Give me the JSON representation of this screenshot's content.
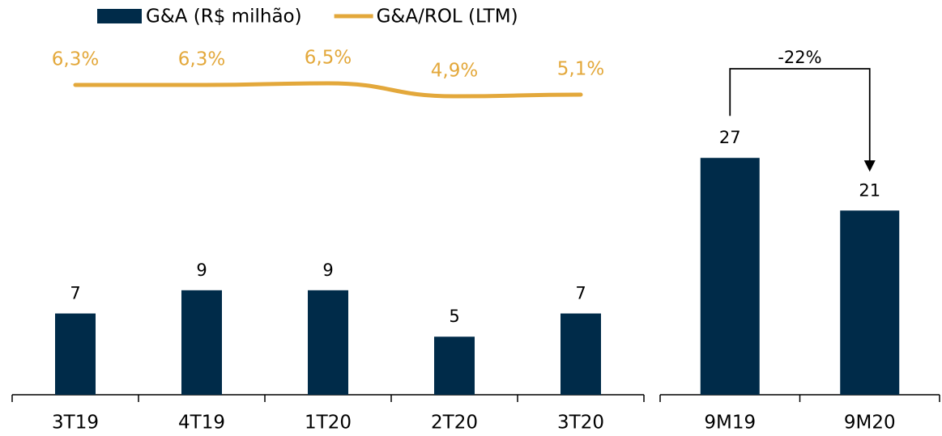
{
  "chart_data": [
    {
      "type": "bar",
      "categories": [
        "3T19",
        "4T19",
        "1T20",
        "2T20",
        "3T20"
      ],
      "series": [
        {
          "name": "G&A (R$ milhão)",
          "color": "#002b49",
          "values": [
            7,
            9,
            9,
            5,
            7
          ]
        },
        {
          "name": "G&A/ROL (LTM)",
          "color": "#e3a83b",
          "type": "line",
          "axis": "y2",
          "values": [
            6.3,
            6.3,
            6.5,
            4.9,
            5.1
          ],
          "value_labels": [
            "6,3%",
            "6,3%",
            "6,5%",
            "4,9%",
            "5,1%"
          ]
        }
      ],
      "ylim": [
        0,
        34
      ],
      "y2lim": [
        -32,
        16.8
      ],
      "legend": "top"
    },
    {
      "type": "bar",
      "categories": [
        "9M19",
        "9M20"
      ],
      "values": [
        27,
        21
      ],
      "color": "#002b49",
      "ylim": [
        0,
        45
      ],
      "annotation": "-22%"
    }
  ]
}
